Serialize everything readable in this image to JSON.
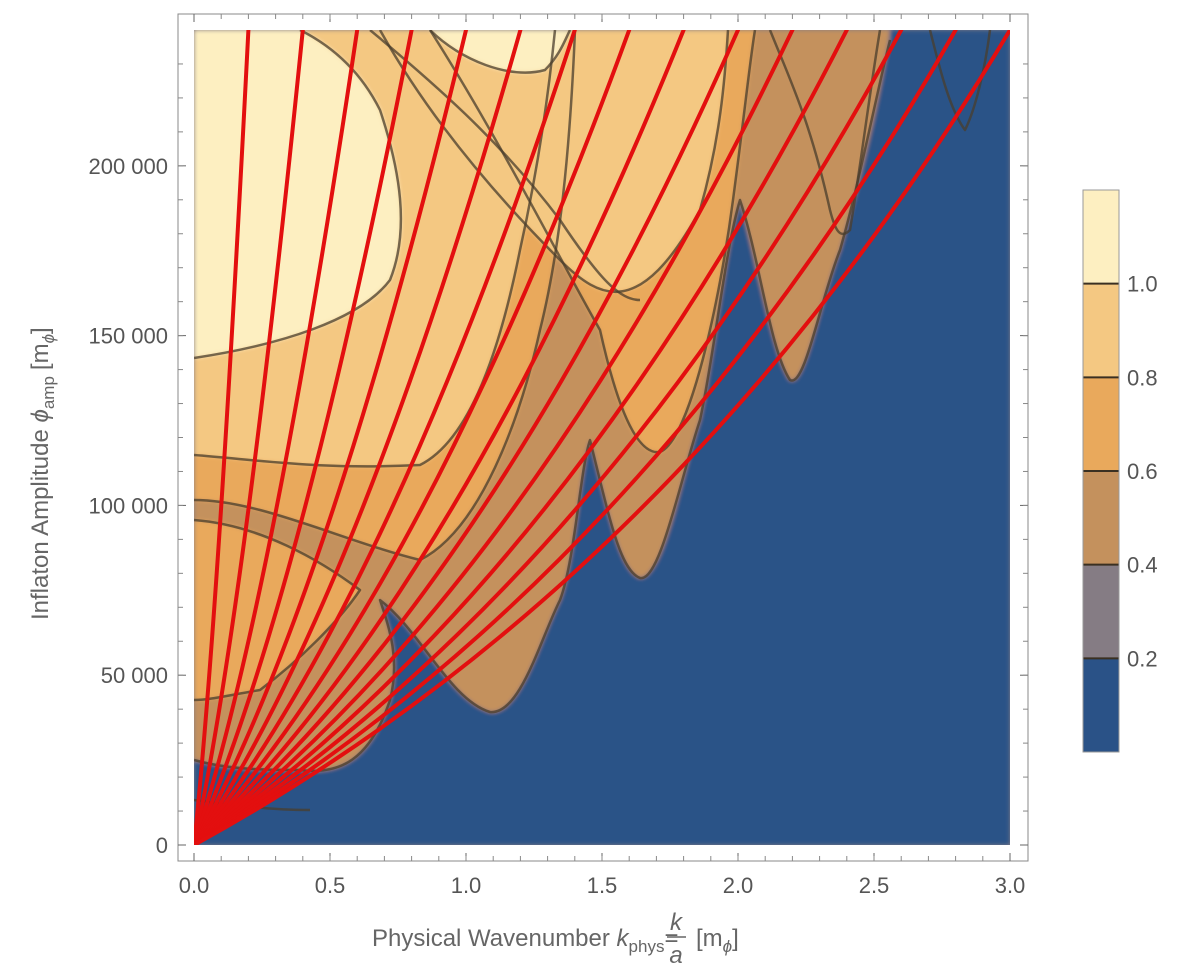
{
  "chart_data": {
    "type": "contour",
    "xlabel": {
      "prefix": "Physical Wavenumber ",
      "symbol": "k",
      "subscript": "phys",
      "equals": "=",
      "numerator": "k",
      "denominator": "a",
      "unit": "[m",
      "unit_subscript": "ϕ",
      "unit_close": "]"
    },
    "ylabel": {
      "prefix": "Inflaton Amplitude ",
      "symbol": "ϕ",
      "subscript": "amp",
      "unit": "[m",
      "unit_subscript": "ϕ",
      "unit_close": "]"
    },
    "xlim": [
      0,
      3.0
    ],
    "ylim": [
      0,
      240000
    ],
    "x_ticks": [
      {
        "value": 0.0,
        "label": "0.0"
      },
      {
        "value": 0.5,
        "label": "0.5"
      },
      {
        "value": 1.0,
        "label": "1.0"
      },
      {
        "value": 1.5,
        "label": "1.5"
      },
      {
        "value": 2.0,
        "label": "2.0"
      },
      {
        "value": 2.5,
        "label": "2.5"
      },
      {
        "value": 3.0,
        "label": "3.0"
      }
    ],
    "y_ticks": [
      {
        "value": 0,
        "label": "0"
      },
      {
        "value": 50000,
        "label": "50 000"
      },
      {
        "value": 100000,
        "label": "100 000"
      },
      {
        "value": 150000,
        "label": "150 000"
      },
      {
        "value": 200000,
        "label": "200 000"
      }
    ],
    "colorbar": {
      "levels": [
        0.2,
        0.4,
        0.6,
        0.8,
        1.0
      ],
      "labels": [
        "0.2",
        "0.4",
        "0.6",
        "0.8",
        "1.0"
      ],
      "band_colors": [
        "#2a5287",
        "#857c84",
        "#c4915d",
        "#e9a95c",
        "#f4c882",
        "#fdefc1"
      ],
      "range": [
        0,
        1.2
      ]
    },
    "field": {
      "low_color": "#2a5287",
      "contour_line_color": "#4a3d2c"
    },
    "red_lines": {
      "color": "#e30f0f",
      "end_x": [
        0.2,
        0.4,
        0.6,
        0.8,
        1.0,
        1.2,
        1.4,
        1.6,
        1.8,
        2.0,
        2.2,
        2.4,
        2.6,
        2.8,
        3.0
      ],
      "end_y": 240000,
      "origin": [
        0,
        0
      ]
    }
  }
}
